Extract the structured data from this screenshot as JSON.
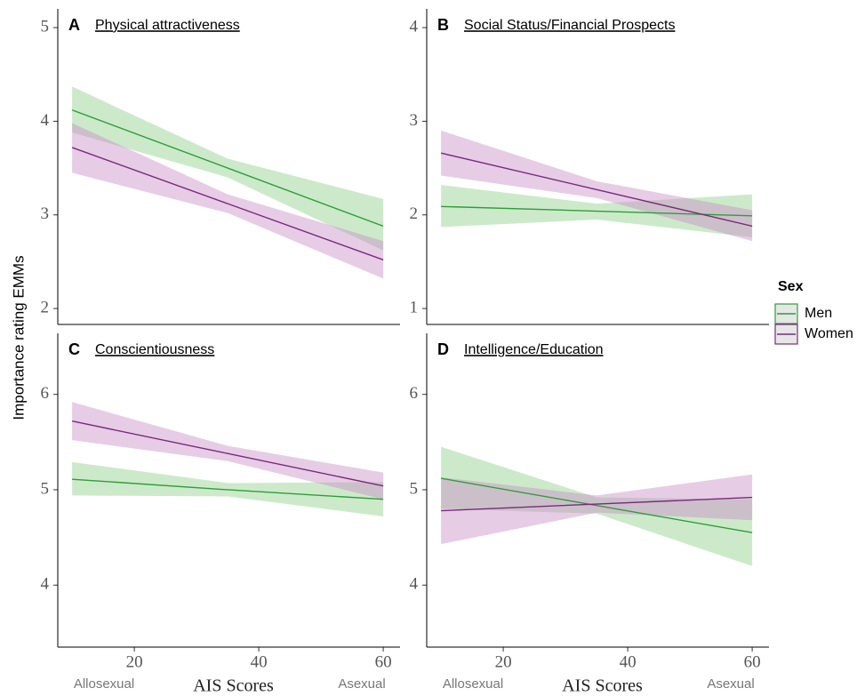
{
  "ylabel": "Importance rating EMMs",
  "legend_title": "Sex",
  "chart_data": [
    {
      "type": "line",
      "letter": "A",
      "title": "Physical attractiveness",
      "xlim": [
        7.7,
        62.7
      ],
      "ylim": [
        1.83,
        5.2
      ],
      "yticks": [
        2,
        3,
        4,
        5
      ],
      "series": [
        {
          "name": "Men",
          "color": "#2e9e3a",
          "band_color": "#8fd08a",
          "x": [
            10,
            35,
            60
          ],
          "values": [
            4.12,
            3.5,
            2.88
          ],
          "lower": [
            3.88,
            3.4,
            2.62
          ],
          "upper": [
            4.37,
            3.6,
            3.17
          ]
        },
        {
          "name": "Women",
          "color": "#7a2a7e",
          "band_color": "#c98fc8",
          "x": [
            10,
            35,
            60
          ],
          "values": [
            3.72,
            3.12,
            2.52
          ],
          "lower": [
            3.45,
            3.02,
            2.32
          ],
          "upper": [
            3.98,
            3.22,
            2.72
          ]
        }
      ]
    },
    {
      "type": "line",
      "letter": "B",
      "title": "Social Status/Financial Prospects",
      "xlim": [
        7.7,
        62.7
      ],
      "ylim": [
        0.83,
        4.2
      ],
      "yticks": [
        1,
        2,
        3,
        4
      ],
      "series": [
        {
          "name": "Men",
          "color": "#2e9e3a",
          "band_color": "#8fd08a",
          "x": [
            10,
            35,
            60
          ],
          "values": [
            2.09,
            2.04,
            1.99
          ],
          "lower": [
            1.87,
            1.95,
            1.76
          ],
          "upper": [
            2.32,
            2.12,
            2.22
          ]
        },
        {
          "name": "Women",
          "color": "#7a2a7e",
          "band_color": "#c98fc8",
          "x": [
            10,
            35,
            60
          ],
          "values": [
            2.66,
            2.27,
            1.88
          ],
          "lower": [
            2.42,
            2.18,
            1.72
          ],
          "upper": [
            2.9,
            2.36,
            2.05
          ]
        }
      ]
    },
    {
      "type": "line",
      "letter": "C",
      "title": "Conscientiousness",
      "xlim": [
        7.7,
        62.7
      ],
      "ylim": [
        3.35,
        6.64
      ],
      "yticks": [
        4,
        5,
        6
      ],
      "xticks": [
        20,
        40,
        60
      ],
      "xlabel": "AIS Scores",
      "x_end_labels": [
        "Allosexual",
        "Asexual"
      ],
      "series": [
        {
          "name": "Men",
          "color": "#2e9e3a",
          "band_color": "#8fd08a",
          "x": [
            10,
            35,
            60
          ],
          "values": [
            5.11,
            5.0,
            4.9
          ],
          "lower": [
            4.94,
            4.93,
            4.72
          ],
          "upper": [
            5.29,
            5.07,
            5.08
          ]
        },
        {
          "name": "Women",
          "color": "#7a2a7e",
          "band_color": "#c98fc8",
          "x": [
            10,
            35,
            60
          ],
          "values": [
            5.72,
            5.38,
            5.04
          ],
          "lower": [
            5.52,
            5.3,
            4.9
          ],
          "upper": [
            5.92,
            5.46,
            5.18
          ]
        }
      ]
    },
    {
      "type": "line",
      "letter": "D",
      "title": "Intelligence/Education",
      "xlim": [
        7.7,
        62.7
      ],
      "ylim": [
        3.35,
        6.64
      ],
      "yticks": [
        4,
        5,
        6
      ],
      "xticks": [
        20,
        40,
        60
      ],
      "xlabel": "AIS Scores",
      "x_end_labels": [
        "Allosexual",
        "Asexual"
      ],
      "series": [
        {
          "name": "Men",
          "color": "#2e9e3a",
          "band_color": "#8fd08a",
          "x": [
            10,
            35,
            60
          ],
          "values": [
            5.12,
            4.835,
            4.55
          ],
          "lower": [
            4.8,
            4.75,
            4.2
          ],
          "upper": [
            5.45,
            4.92,
            4.9
          ]
        },
        {
          "name": "Women",
          "color": "#7a2a7e",
          "band_color": "#c98fc8",
          "x": [
            10,
            35,
            60
          ],
          "values": [
            4.78,
            4.85,
            4.92
          ],
          "lower": [
            4.43,
            4.76,
            4.68
          ],
          "upper": [
            5.13,
            4.94,
            5.16
          ]
        }
      ]
    }
  ]
}
